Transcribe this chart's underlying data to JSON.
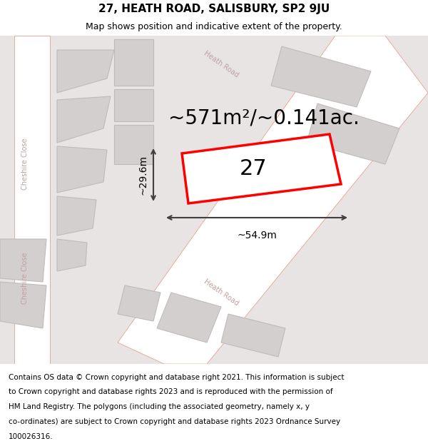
{
  "title": "27, HEATH ROAD, SALISBURY, SP2 9JU",
  "subtitle": "Map shows position and indicative extent of the property.",
  "area_text": "~571m²/~0.141ac.",
  "label_number": "27",
  "dim_width": "~54.9m",
  "dim_height": "~29.6m",
  "footer": "Contains OS data © Crown copyright and database right 2021. This information is subject to Crown copyright and database rights 2023 and is reproduced with the permission of HM Land Registry. The polygons (including the associated geometry, namely x, y co-ordinates) are subject to Crown copyright and database rights 2023 Ordnance Survey 100026316.",
  "bg_color": "#f0eeee",
  "map_bg": "#e8e4e4",
  "road_color": "#ffffff",
  "building_color": "#d0cccc",
  "plot_edge_color": "#ff0000",
  "plot_fill_color": "#ffffff",
  "plot_fill_alpha": 0.0,
  "footer_bg": "#ffffff",
  "title_fontsize": 11,
  "subtitle_fontsize": 9,
  "area_fontsize": 20,
  "number_fontsize": 22,
  "dim_fontsize": 10,
  "footer_fontsize": 7.5
}
